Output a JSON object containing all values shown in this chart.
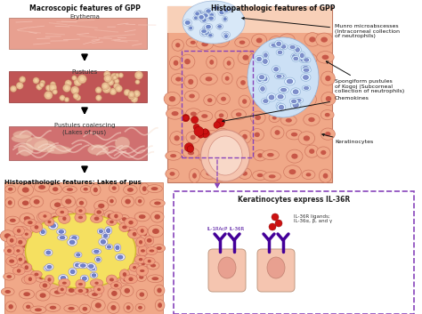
{
  "title_left": "Macroscopic features of GPP",
  "title_right": "Histopathologic features of GPP",
  "labels_left": [
    "Erythema",
    "Pustules",
    "Pustules coalescing\n(Lakes of pus)"
  ],
  "label_histo": "Histopathologic features: Lakes of pus",
  "annotations_right": [
    "Munro microabscesses\n(Intracorneal collection\nof neutrophils)",
    "Spongiform pustules\nof Kogoj (Subcorneal\ncollection of neutrophils)",
    "Chemokines",
    "Keratinocytes"
  ],
  "box_title": "Keratinocytes express IL-36R",
  "label_il1racp": "IL-1RAcP",
  "label_il36r": "IL-36R",
  "label_ligands": "IL-36R ligands;\nIL-36α, β, and γ",
  "bg_color": "#ffffff",
  "purple_border": "#8844bb",
  "red_dot": "#cc1111",
  "dark_purple": "#440099",
  "skin_pink": "#f0a888",
  "skin_light": "#f8d0b8",
  "cell_blue": "#9aafe0",
  "cell_blue_bg": "#c8daf0",
  "erythema_color": "#e8a090",
  "pustules_color": "#c85050",
  "coalescing_color": "#d47870"
}
